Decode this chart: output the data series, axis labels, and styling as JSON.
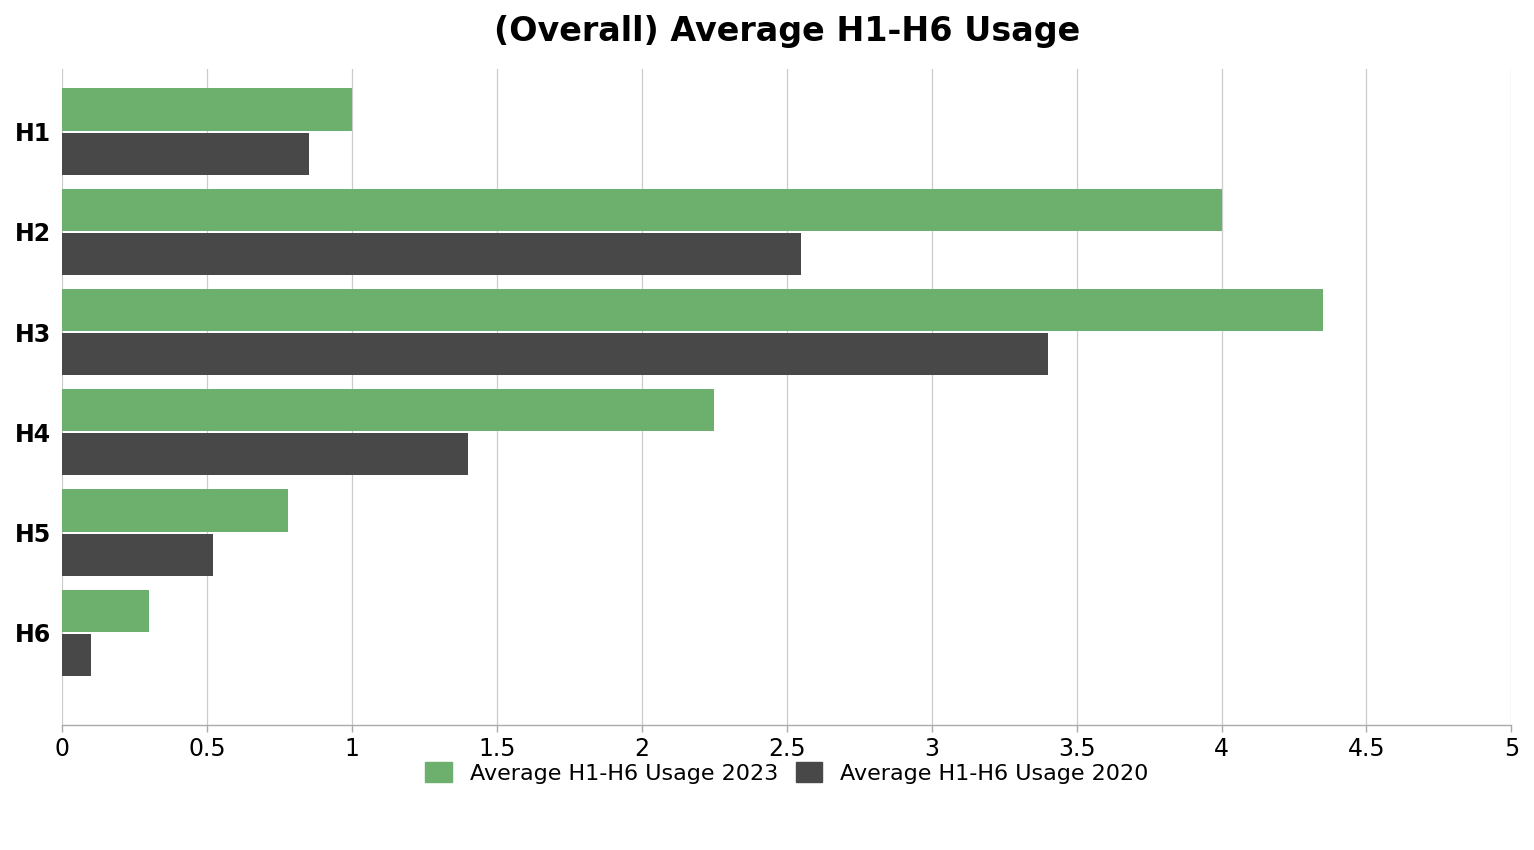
{
  "title": "(Overall) Average H1-H6 Usage",
  "categories": [
    "H1",
    "H2",
    "H3",
    "H4",
    "H5",
    "H6"
  ],
  "values_2023": [
    1.0,
    4.0,
    4.35,
    2.25,
    0.78,
    0.3
  ],
  "values_2020": [
    0.85,
    2.55,
    3.4,
    1.4,
    0.52,
    0.1
  ],
  "color_2023": "#6daf6d",
  "color_2020": "#484848",
  "xlim": [
    0,
    5
  ],
  "xticks": [
    0,
    0.5,
    1,
    1.5,
    2,
    2.5,
    3,
    3.5,
    4,
    4.5,
    5
  ],
  "xtick_labels": [
    "0",
    "0.5",
    "1",
    "1.5",
    "2",
    "2.5",
    "3",
    "3.5",
    "4",
    "4.5",
    "5"
  ],
  "legend_label_2023": "Average H1-H6 Usage 2023",
  "legend_label_2020": "Average H1-H6 Usage 2020",
  "title_fontsize": 24,
  "tick_fontsize": 17,
  "legend_fontsize": 16,
  "bar_height": 0.42,
  "background_color": "#ffffff",
  "grid_color": "#cccccc"
}
